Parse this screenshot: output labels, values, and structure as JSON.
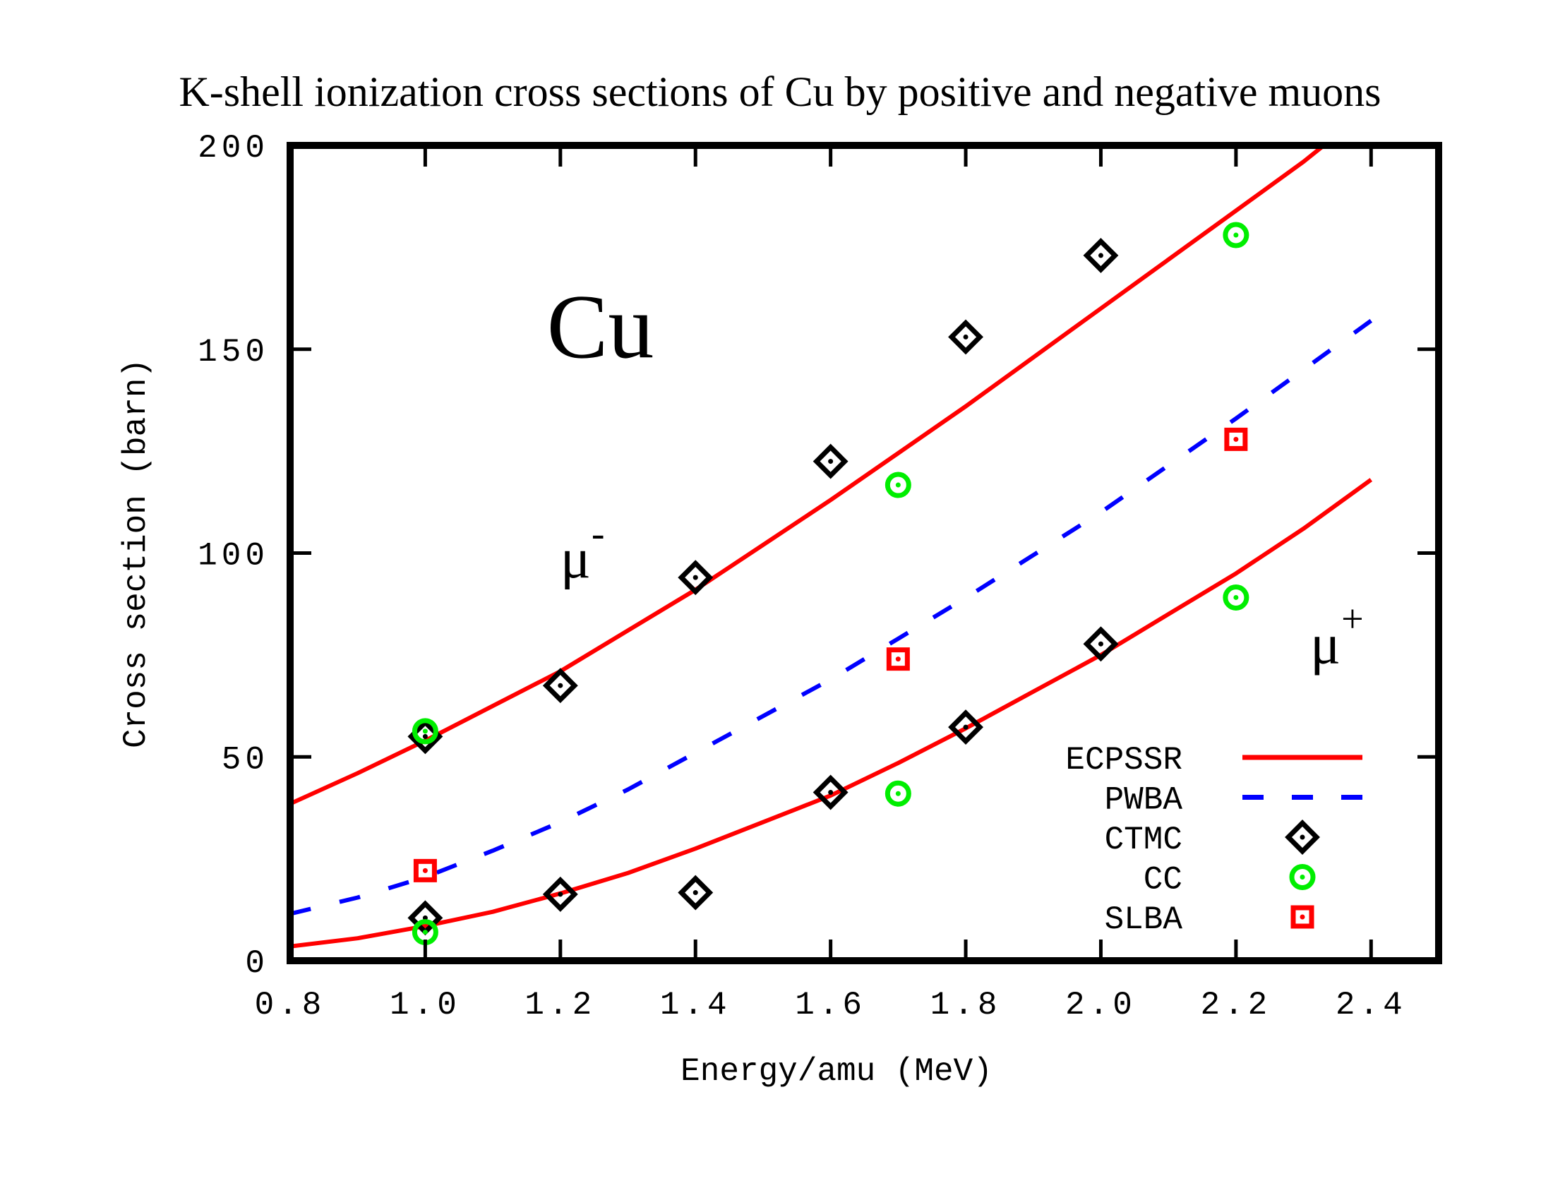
{
  "chart_data": {
    "type": "scatter",
    "title": "K-shell ionization cross sections of Cu by positive and negative muons",
    "xlabel": "Energy/amu (MeV)",
    "ylabel": "Cross section (barn)",
    "xlim": [
      0.8,
      2.5
    ],
    "ylim": [
      0,
      200
    ],
    "xticks": [
      0.8,
      1.0,
      1.2,
      1.4,
      1.6,
      1.8,
      2.0,
      2.2,
      2.4
    ],
    "xtick_labels": [
      "0.8",
      "1.0",
      "1.2",
      "1.4",
      "1.6",
      "1.8",
      "2.0",
      "2.2",
      "2.4"
    ],
    "yticks": [
      0,
      50,
      100,
      150,
      200
    ],
    "ytick_labels": [
      "0",
      "50",
      "100",
      "150",
      "200"
    ],
    "grid": false,
    "legend_position": "bottom-right",
    "annotations": [
      {
        "text": "Cu",
        "x": 1.18,
        "y": 148,
        "kind": "big"
      },
      {
        "text": "μ",
        "sup": "-",
        "x": 1.2,
        "y": 94,
        "kind": "mu"
      },
      {
        "text": "μ",
        "sup": "+",
        "x": 2.31,
        "y": 73,
        "kind": "mu"
      }
    ],
    "series": [
      {
        "name": "ECPSSR",
        "legend": true,
        "kind": "line",
        "style": "solid",
        "color": "#ff0000",
        "group": "mu-minus",
        "x": [
          0.8,
          0.9,
          1.0,
          1.1,
          1.2,
          1.3,
          1.4,
          1.5,
          1.6,
          1.7,
          1.8,
          1.9,
          2.0,
          2.1,
          2.2,
          2.3,
          2.33
        ],
        "y": [
          38.5,
          46,
          54,
          62.5,
          71,
          81,
          91,
          102,
          113,
          124.5,
          136,
          148,
          160,
          172,
          184,
          196,
          200
        ]
      },
      {
        "name": "ECPSSR",
        "legend": false,
        "kind": "line",
        "style": "solid",
        "color": "#ff0000",
        "group": "mu-plus",
        "x": [
          0.8,
          0.9,
          1.0,
          1.1,
          1.2,
          1.3,
          1.4,
          1.5,
          1.6,
          1.7,
          1.8,
          1.9,
          2.0,
          2.1,
          2.2,
          2.3,
          2.4
        ],
        "y": [
          3.5,
          5.5,
          8.5,
          12,
          16.5,
          21.5,
          27.5,
          34,
          40.5,
          48.5,
          57,
          66,
          75,
          85,
          95,
          106,
          118
        ]
      },
      {
        "name": "PWBA",
        "legend": true,
        "kind": "line",
        "style": "dashed",
        "color": "#0000ff",
        "x": [
          0.8,
          0.9,
          1.0,
          1.1,
          1.2,
          1.3,
          1.4,
          1.5,
          1.6,
          1.7,
          1.8,
          1.9,
          2.0,
          2.1,
          2.2,
          2.3,
          2.4
        ],
        "y": [
          11.5,
          15.5,
          20.5,
          27,
          34,
          42,
          51,
          60,
          69,
          79,
          89,
          99.5,
          110,
          121.5,
          133,
          145,
          157
        ]
      },
      {
        "name": "CTMC",
        "legend": true,
        "kind": "marker",
        "marker": "diamond",
        "color": "#000000",
        "x": [
          1.0,
          1.2,
          1.4,
          1.6,
          1.8,
          2.0,
          1.0,
          1.2,
          1.4,
          1.6,
          1.8,
          2.0
        ],
        "y": [
          55,
          67.5,
          94,
          122.5,
          153,
          173,
          10.5,
          16.3,
          16.7,
          41.3,
          57.3,
          77.7
        ]
      },
      {
        "name": "CC",
        "legend": true,
        "kind": "marker",
        "marker": "circle",
        "color": "#00ee00",
        "x": [
          1.0,
          1.7,
          2.2,
          1.0,
          1.7,
          2.2
        ],
        "y": [
          56.3,
          116.7,
          178,
          7.0,
          41.0,
          89.1
        ]
      },
      {
        "name": "SLBA",
        "legend": true,
        "kind": "marker",
        "marker": "square",
        "color": "#ff0000",
        "x": [
          1.0,
          1.7,
          2.2
        ],
        "y": [
          22.1,
          74.0,
          127.9
        ]
      }
    ],
    "legend_entries": [
      {
        "label": "ECPSSR",
        "series": "ECPSSR",
        "kind": "line",
        "style": "solid",
        "color": "#ff0000"
      },
      {
        "label": "PWBA",
        "series": "PWBA",
        "kind": "line",
        "style": "dashed",
        "color": "#0000ff"
      },
      {
        "label": "CTMC",
        "series": "CTMC",
        "kind": "marker",
        "marker": "diamond",
        "color": "#000000"
      },
      {
        "label": "CC",
        "series": "CC",
        "kind": "marker",
        "marker": "circle",
        "color": "#00ee00"
      },
      {
        "label": "SLBA",
        "series": "SLBA",
        "kind": "marker",
        "marker": "square",
        "color": "#ff0000"
      }
    ]
  }
}
